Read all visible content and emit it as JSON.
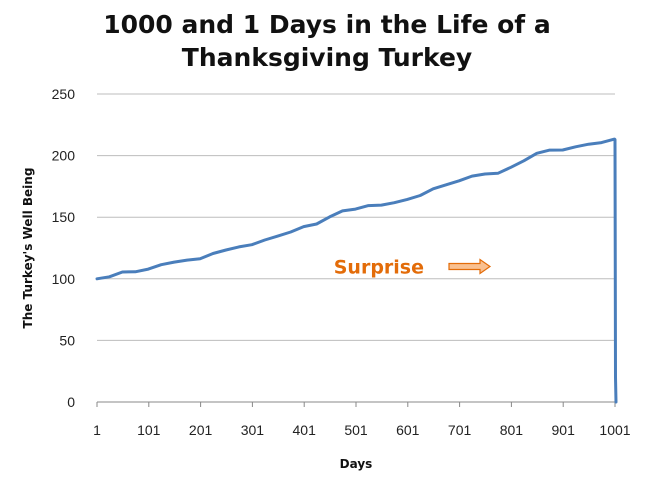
{
  "chart_data": {
    "type": "line",
    "title_lines": [
      "1000 and 1 Days in the Life of a",
      "Thanksgiving Turkey"
    ],
    "xlabel": "Days",
    "ylabel": "The Turkey's Well Being",
    "xlim": [
      1,
      1001
    ],
    "ylim": [
      0,
      250
    ],
    "x_ticks": [
      "1",
      "101",
      "201",
      "301",
      "401",
      "501",
      "601",
      "701",
      "801",
      "901",
      "1001"
    ],
    "y_ticks": [
      "0",
      "50",
      "100",
      "150",
      "200",
      "250"
    ],
    "grid": "horizontal",
    "series": [
      {
        "color": "#4a7ebb",
        "x": [
          1,
          25,
          50,
          75,
          100,
          125,
          150,
          175,
          200,
          225,
          250,
          275,
          300,
          325,
          350,
          375,
          400,
          425,
          450,
          475,
          500,
          525,
          550,
          575,
          600,
          625,
          650,
          675,
          700,
          725,
          750,
          775,
          800,
          825,
          850,
          875,
          900,
          925,
          950,
          975,
          1000,
          1001,
          1002,
          1003
        ],
        "y": [
          100,
          102,
          105,
          106,
          108,
          111,
          114,
          115,
          116,
          121,
          123,
          126,
          128,
          131,
          135,
          138,
          142,
          145,
          150,
          155,
          157,
          159,
          160,
          162,
          164,
          168,
          173,
          176,
          180,
          183,
          185,
          186,
          190,
          196,
          202,
          204,
          205,
          207,
          209,
          211,
          213,
          213,
          20,
          0
        ]
      }
    ],
    "annotation": {
      "text": "Surprise",
      "color": "#e36c09",
      "arrow_fill": "#f9c090",
      "x": 640,
      "y": 110
    }
  }
}
